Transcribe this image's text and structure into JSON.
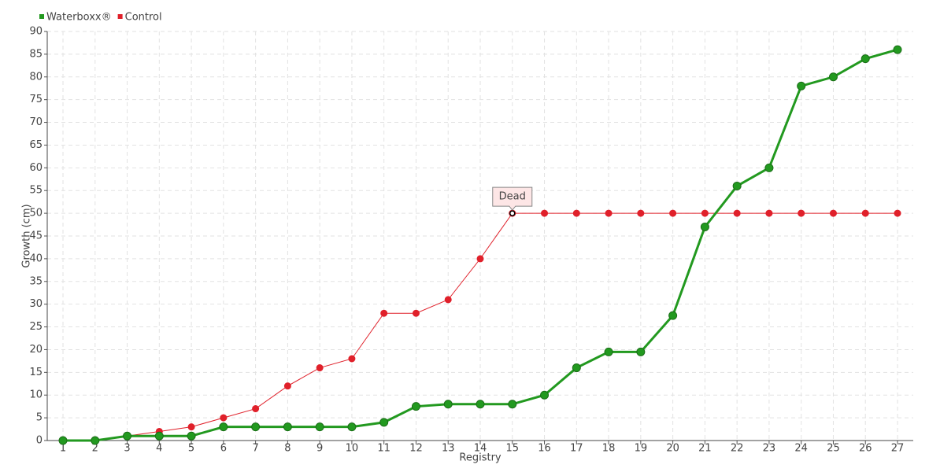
{
  "chart_data": {
    "type": "line",
    "categories": [
      "1",
      "2",
      "3",
      "4",
      "5",
      "6",
      "7",
      "8",
      "9",
      "10",
      "11",
      "12",
      "13",
      "14",
      "15",
      "16",
      "17",
      "18",
      "19",
      "20",
      "21",
      "22",
      "23",
      "24",
      "25",
      "26",
      "27"
    ],
    "x_label": "Registry",
    "y_label": "Growth (cm)",
    "series": [
      {
        "name": "Waterboxx®",
        "color": "#22991f",
        "values": [
          0,
          0,
          1,
          1,
          1,
          3,
          3,
          3,
          3,
          3,
          4,
          7.5,
          8,
          8,
          8,
          10,
          16,
          19.5,
          19.5,
          27.5,
          47,
          56,
          60,
          78,
          80,
          84,
          86
        ]
      },
      {
        "name": "Control",
        "color": "#e0202a",
        "values": [
          0,
          0,
          1,
          2,
          3,
          5,
          7,
          12,
          16,
          18,
          28,
          28,
          31,
          40,
          50,
          50,
          50,
          50,
          50,
          50,
          50,
          50,
          50,
          50,
          50,
          50,
          50
        ]
      }
    ],
    "annotations": [
      {
        "text": "Dead",
        "x": "15",
        "y": 50
      }
    ],
    "ylim": [
      0,
      90
    ],
    "yticks": [
      0,
      5,
      10,
      15,
      20,
      25,
      30,
      35,
      40,
      45,
      50,
      55,
      60,
      65,
      70,
      75,
      80,
      85,
      90
    ],
    "grid": true,
    "legend": "top-left"
  }
}
